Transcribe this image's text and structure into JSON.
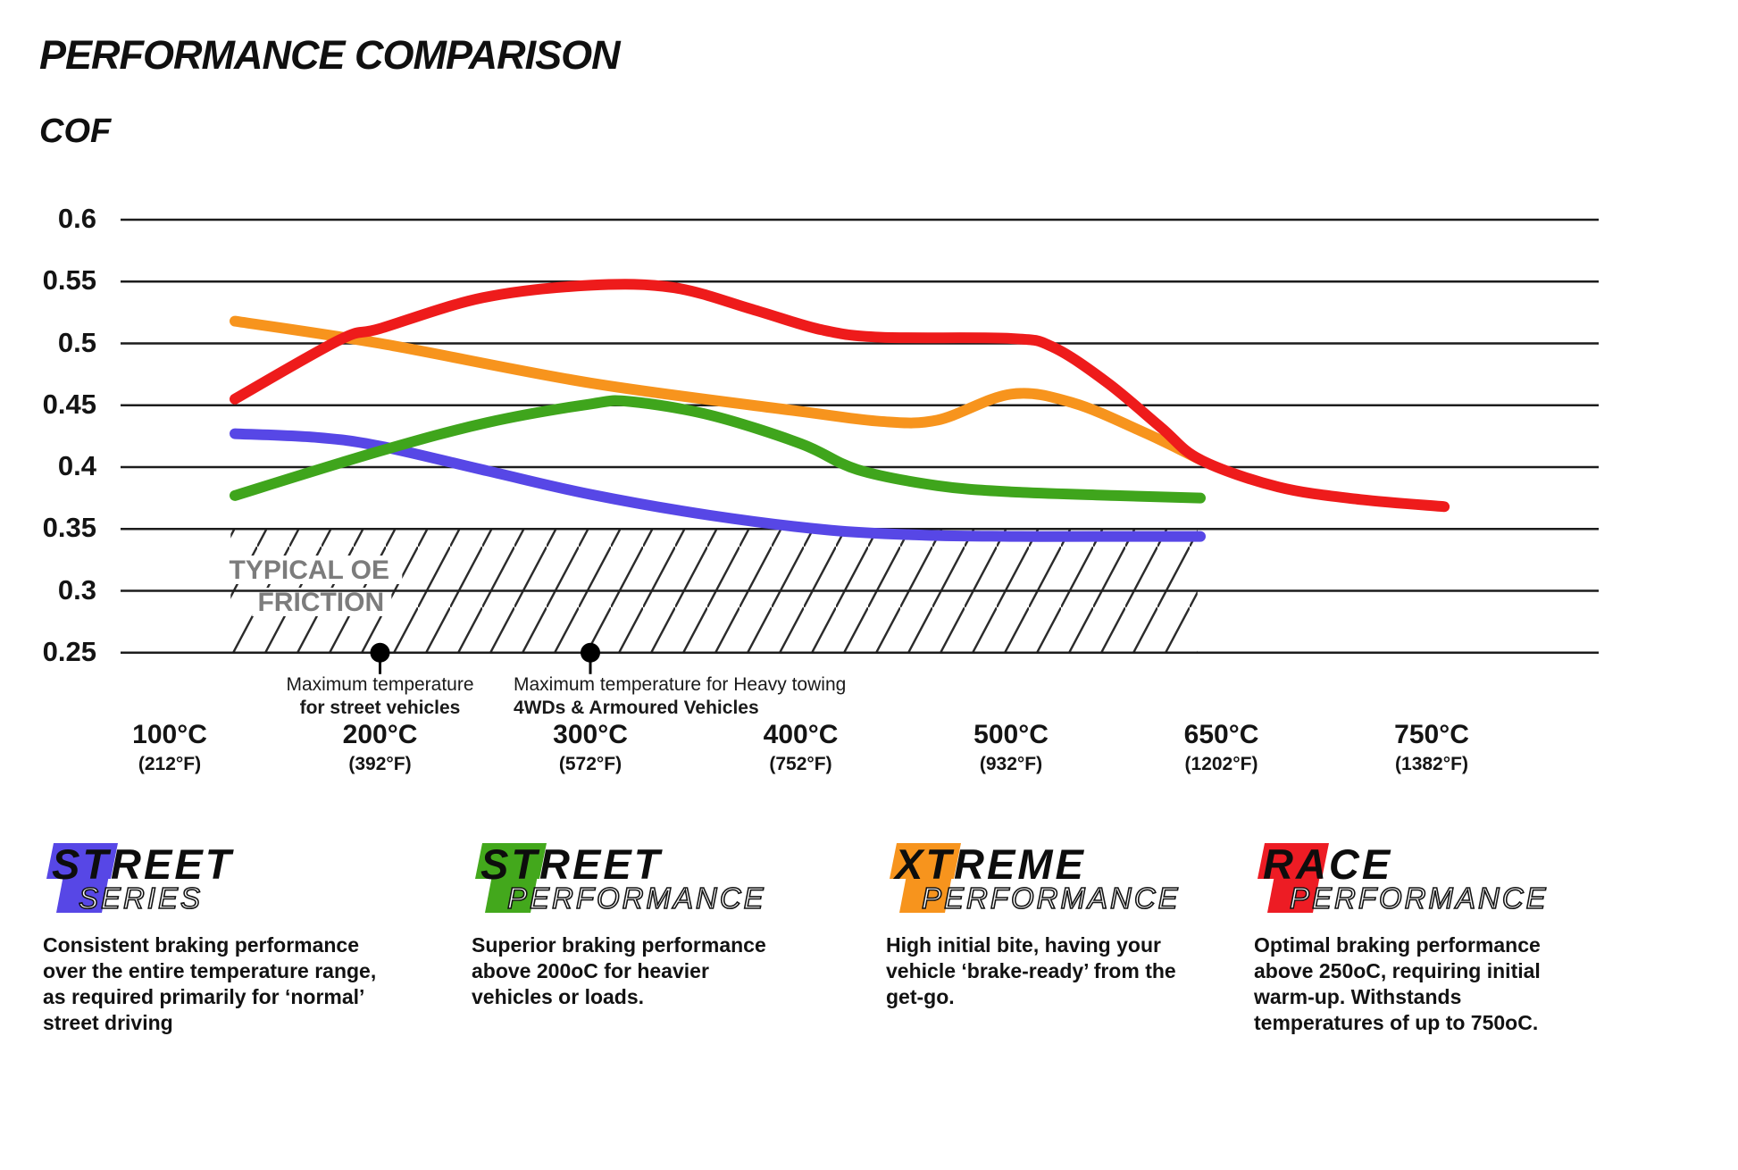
{
  "page": {
    "title": "PERFORMANCE COMPARISON",
    "y_axis_label": "COF"
  },
  "colors": {
    "street_series_blue": "#5747e6",
    "street_performance_green": "#3fa51c",
    "xtreme_performance_orange": "#f7941d",
    "race_performance_red": "#ee1b1b",
    "grid": "#1c1c1c",
    "hatch": "#2b2b2b",
    "oe_label_gray": "#7c7c7c",
    "text": "#111111"
  },
  "chart_data": {
    "type": "line",
    "title": "PERFORMANCE COMPARISON",
    "ylabel": "COF",
    "ylim": [
      0.25,
      0.6
    ],
    "grid": "horizontal",
    "legend_position": "bottom",
    "y_ticks": [
      "0.6",
      "0.55",
      "0.5",
      "0.45",
      "0.4",
      "0.35",
      "0.3",
      "0.25"
    ],
    "x_ticks": [
      {
        "c": "100°C",
        "f": "(212°F)",
        "t": 100
      },
      {
        "c": "200°C",
        "f": "(392°F)",
        "t": 200
      },
      {
        "c": "300°C",
        "f": "(572°F)",
        "t": 300
      },
      {
        "c": "400°C",
        "f": "(752°F)",
        "t": 400
      },
      {
        "c": "500°C",
        "f": "(932°F)",
        "t": 500
      },
      {
        "c": "650°C",
        "f": "(1202°F)",
        "t": 650
      },
      {
        "c": "750°C",
        "f": "(1382°F)",
        "t": 750
      }
    ],
    "series": [
      {
        "name": "Street Series",
        "color": "#5747e6",
        "points": [
          [
            131,
            0.427
          ],
          [
            170,
            0.424
          ],
          [
            200,
            0.417
          ],
          [
            251,
            0.397
          ],
          [
            300,
            0.378
          ],
          [
            357,
            0.361
          ],
          [
            414,
            0.349
          ],
          [
            459,
            0.345
          ],
          [
            500,
            0.344
          ],
          [
            560,
            0.344
          ],
          [
            635,
            0.344
          ]
        ]
      },
      {
        "name": "Street Performance",
        "color": "#3fa51c",
        "points": [
          [
            131,
            0.377
          ],
          [
            200,
            0.413
          ],
          [
            251,
            0.436
          ],
          [
            300,
            0.451
          ],
          [
            319,
            0.453
          ],
          [
            357,
            0.442
          ],
          [
            400,
            0.419
          ],
          [
            427,
            0.398
          ],
          [
            465,
            0.385
          ],
          [
            500,
            0.38
          ],
          [
            575,
            0.377
          ],
          [
            635,
            0.375
          ]
        ]
      },
      {
        "name": "Xtreme Performance",
        "color": "#f7941d",
        "points": [
          [
            131,
            0.518
          ],
          [
            200,
            0.5
          ],
          [
            300,
            0.468
          ],
          [
            400,
            0.445
          ],
          [
            438,
            0.437
          ],
          [
            465,
            0.438
          ],
          [
            500,
            0.459
          ],
          [
            544,
            0.452
          ],
          [
            595,
            0.428
          ],
          [
            635,
            0.406
          ]
        ]
      },
      {
        "name": "Race Performance",
        "color": "#ee1b1b",
        "points": [
          [
            131,
            0.455
          ],
          [
            181,
            0.503
          ],
          [
            200,
            0.512
          ],
          [
            249,
            0.537
          ],
          [
            300,
            0.547
          ],
          [
            340,
            0.545
          ],
          [
            378,
            0.527
          ],
          [
            410,
            0.511
          ],
          [
            438,
            0.505
          ],
          [
            500,
            0.504
          ],
          [
            530,
            0.497
          ],
          [
            569,
            0.468
          ],
          [
            607,
            0.432
          ],
          [
            635,
            0.406
          ],
          [
            677,
            0.384
          ],
          [
            715,
            0.374
          ],
          [
            756,
            0.368
          ]
        ]
      }
    ],
    "oe_friction_band": {
      "label_line1": "TYPICAL OE",
      "label_line2": "FRICTION",
      "cof_min": 0.25,
      "cof_max": 0.35,
      "temp_start_c": 129,
      "temp_end_c": 633
    },
    "annotations": [
      {
        "temp_c": 200,
        "cof": 0.25,
        "align": "center",
        "line1": "Maximum temperature",
        "line2": "for street vehicles"
      },
      {
        "temp_c": 300,
        "cof": 0.25,
        "align": "left",
        "line1": "Maximum temperature for Heavy towing",
        "line2": "4WDs & Armoured Vehicles"
      }
    ]
  },
  "legend": [
    {
      "word1": "STREET",
      "word2": "SERIES",
      "color": "#5747e6",
      "description": "Consistent braking performance over the entire temperature range, as required primarily for ‘normal’ street driving"
    },
    {
      "word1": "STREET",
      "word2": "PERFORMANCE",
      "color": "#43a81c",
      "description": "Superior braking performance above 200oC for heavier vehicles or loads."
    },
    {
      "word1": "XTREME",
      "word2": "PERFORMANCE",
      "color": "#f7941d",
      "description": "High initial bite, having your vehicle ‘brake-ready’ from the get-go."
    },
    {
      "word1": "RACE",
      "word2": "PERFORMANCE",
      "color": "#ed1c24",
      "description": "Optimal braking performance above 250oC, requiring initial warm-up. Withstands temperatures of up to 750oC."
    }
  ]
}
